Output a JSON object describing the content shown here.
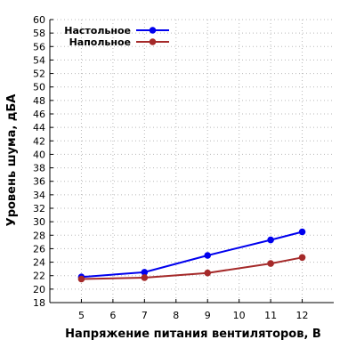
{
  "chart_data": {
    "type": "line",
    "xlabel": "Напряжение питания вентиляторов, В",
    "ylabel": "Уровень шума, дБА",
    "xlim": [
      4,
      13
    ],
    "ylim": [
      18,
      60
    ],
    "x_ticks": [
      "5",
      "6",
      "7",
      "8",
      "9",
      "10",
      "11",
      "12"
    ],
    "y_ticks": [
      "18",
      "20",
      "22",
      "24",
      "26",
      "28",
      "30",
      "32",
      "34",
      "36",
      "38",
      "40",
      "42",
      "44",
      "46",
      "48",
      "50",
      "52",
      "54",
      "56",
      "58",
      "60"
    ],
    "grid": true,
    "legend_position": "top-left",
    "series": [
      {
        "name": "Настольное",
        "color": "#0000ee",
        "x": [
          5,
          7,
          9,
          11,
          12
        ],
        "values": [
          21.8,
          22.5,
          25.0,
          27.3,
          28.5
        ]
      },
      {
        "name": "Напольное",
        "color": "#a52a2a",
        "x": [
          5,
          7,
          9,
          11,
          12
        ],
        "values": [
          21.5,
          21.7,
          22.4,
          23.8,
          24.7
        ]
      }
    ]
  }
}
